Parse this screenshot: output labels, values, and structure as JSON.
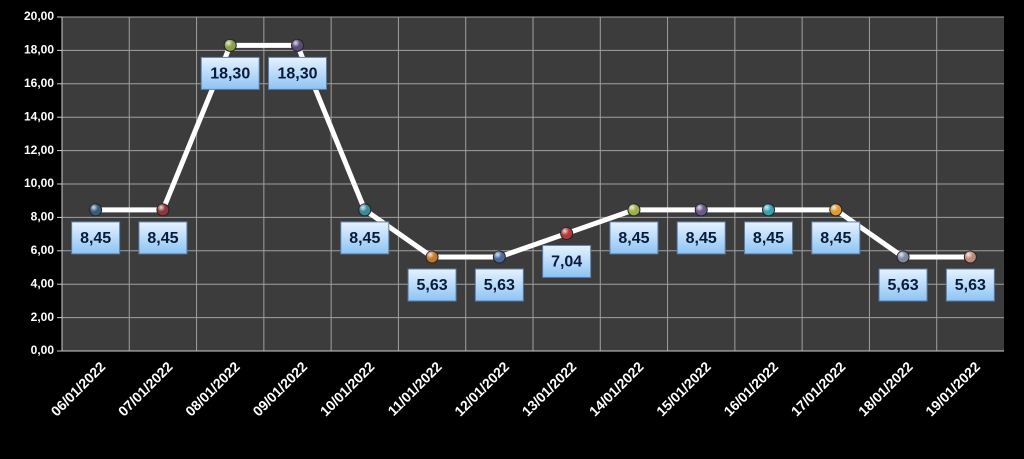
{
  "chart_data": {
    "type": "line",
    "categories": [
      "06/01/2022",
      "07/01/2022",
      "08/01/2022",
      "09/01/2022",
      "10/01/2022",
      "11/01/2022",
      "12/01/2022",
      "13/01/2022",
      "14/01/2022",
      "15/01/2022",
      "16/01/2022",
      "17/01/2022",
      "18/01/2022",
      "19/01/2022"
    ],
    "values": [
      8.45,
      8.45,
      18.3,
      18.3,
      8.45,
      5.63,
      5.63,
      7.04,
      8.45,
      8.45,
      8.45,
      8.45,
      5.63,
      5.63
    ],
    "value_labels": [
      "8,45",
      "8,45",
      "18,30",
      "18,30",
      "8,45",
      "5,63",
      "5,63",
      "7,04",
      "8,45",
      "8,45",
      "8,45",
      "8,45",
      "5,63",
      "5,63"
    ],
    "color": "#ffffff",
    "marker_colors": [
      "#3a5a7a",
      "#8a3a3a",
      "#8aa04a",
      "#5a4a7a",
      "#3a8a9a",
      "#c07a30",
      "#4a6a9a",
      "#b03a3a",
      "#9ab04a",
      "#6a5a8a",
      "#3aa0b0",
      "#e09a30",
      "#7a8aa0",
      "#c08a7a"
    ],
    "ylim": [
      0,
      20
    ],
    "yticks": [
      {
        "value": 0,
        "label": "0,00"
      },
      {
        "value": 2,
        "label": "2,00"
      },
      {
        "value": 4,
        "label": "4,00"
      },
      {
        "value": 6,
        "label": "6,00"
      },
      {
        "value": 8,
        "label": "8,00"
      },
      {
        "value": 10,
        "label": "10,00"
      },
      {
        "value": 12,
        "label": "12,00"
      },
      {
        "value": 14,
        "label": "14,00"
      },
      {
        "value": 16,
        "label": "16,00"
      },
      {
        "value": 18,
        "label": "18,00"
      },
      {
        "value": 20,
        "label": "20,00"
      }
    ],
    "grid": true
  }
}
